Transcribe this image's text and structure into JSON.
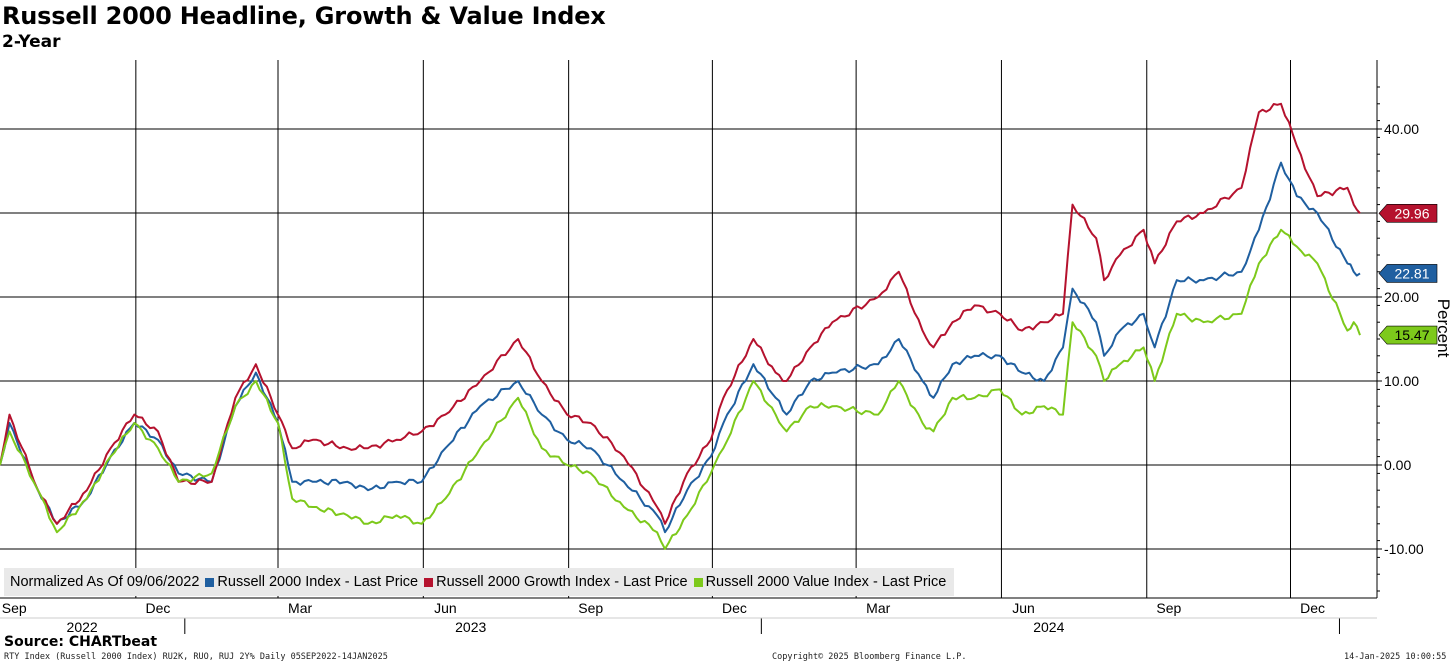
{
  "title": "Russell 2000 Headline, Growth & Value Index",
  "subtitle": "2-Year",
  "source": "Source: CHARTbeat",
  "footer": {
    "left": "RTY Index (Russell 2000 Index) RU2K, RUO, RUJ 2Y%  Daily 05SEP2022-14JAN2025",
    "center": "Copyright© 2025 Bloomberg Finance L.P.",
    "right": "14-Jan-2025 10:00:55"
  },
  "legend": {
    "note": "Normalized As Of 09/06/2022",
    "items": [
      {
        "label": "Russell 2000 Index - Last Price",
        "color": "#1f5fa0"
      },
      {
        "label": "Russell 2000 Growth Index - Last Price",
        "color": "#b5122e"
      },
      {
        "label": "Russell 2000 Value Index - Last Price",
        "color": "#7dc91b"
      }
    ]
  },
  "colors": {
    "headline": "#1f5fa0",
    "growth": "#b5122e",
    "value": "#7dc91b",
    "grid": "#000000"
  },
  "chart_data": {
    "type": "line",
    "ylabel": "Percent",
    "ylim": [
      -15,
      45
    ],
    "y_ticks": [
      "-10.00",
      "0.00",
      "10.00",
      "20.00",
      "40.00"
    ],
    "x_month_labels": [
      "Sep",
      "Dec",
      "Mar",
      "Jun",
      "Sep",
      "Dec",
      "Mar",
      "Jun",
      "Sep",
      "Dec"
    ],
    "x_year_labels": [
      "2022",
      "2023",
      "2024"
    ],
    "x_range": [
      "2022-09-06",
      "2025-01-14"
    ],
    "grid": true,
    "legend_position": "bottom-left",
    "last_values": [
      {
        "series": "Russell 2000 Growth Index - Last Price",
        "value": "29.96"
      },
      {
        "series": "Russell 2000 Index - Last Price",
        "value": "22.81"
      },
      {
        "series": "Russell 2000 Value Index - Last Price",
        "value": "15.47"
      }
    ],
    "series": [
      {
        "name": "Russell 2000 Index - Last Price",
        "color": "#1f5fa0",
        "x": [
          "2022-09-06",
          "2022-09-12",
          "2022-09-30",
          "2022-10-12",
          "2022-10-31",
          "2022-11-15",
          "2022-11-30",
          "2022-12-15",
          "2022-12-28",
          "2023-01-18",
          "2023-02-02",
          "2023-02-15",
          "2023-03-01",
          "2023-03-10",
          "2023-03-23",
          "2023-04-14",
          "2023-04-27",
          "2023-05-15",
          "2023-05-31",
          "2023-06-15",
          "2023-07-07",
          "2023-07-31",
          "2023-08-15",
          "2023-08-31",
          "2023-09-15",
          "2023-10-06",
          "2023-10-27",
          "2023-11-01",
          "2023-11-15",
          "2023-11-30",
          "2023-12-08",
          "2023-12-27",
          "2024-01-10",
          "2024-01-17",
          "2024-02-01",
          "2024-02-15",
          "2024-03-15",
          "2024-03-28",
          "2024-04-12",
          "2024-04-19",
          "2024-05-01",
          "2024-05-15",
          "2024-05-31",
          "2024-06-14",
          "2024-06-28",
          "2024-07-10",
          "2024-07-16",
          "2024-07-31",
          "2024-08-05",
          "2024-08-15",
          "2024-08-30",
          "2024-09-06",
          "2024-09-20",
          "2024-10-07",
          "2024-10-31",
          "2024-11-11",
          "2024-11-25",
          "2024-12-05",
          "2024-12-18",
          "2025-01-06",
          "2025-01-10",
          "2025-01-14"
        ],
        "values": [
          0,
          5,
          -3,
          -7,
          -4,
          1,
          5,
          3,
          -1,
          -2,
          7,
          11,
          5,
          -2,
          -2,
          -2,
          -3,
          -2,
          -2,
          2,
          7,
          10,
          6,
          3,
          2,
          -2,
          -6,
          -8,
          -3,
          1,
          5,
          12,
          8,
          6,
          10,
          11,
          12,
          15,
          10,
          8,
          12,
          13,
          13,
          11,
          10,
          14,
          21,
          17,
          13,
          16,
          18,
          14,
          22,
          22,
          23,
          28,
          36,
          32,
          30,
          24,
          23,
          22.81
        ]
      },
      {
        "name": "Russell 2000 Growth Index - Last Price",
        "color": "#b5122e",
        "x": [
          "2022-09-06",
          "2022-09-12",
          "2022-09-30",
          "2022-10-12",
          "2022-10-31",
          "2022-11-15",
          "2022-11-30",
          "2022-12-15",
          "2022-12-28",
          "2023-01-18",
          "2023-02-02",
          "2023-02-15",
          "2023-03-01",
          "2023-03-10",
          "2023-03-23",
          "2023-04-14",
          "2023-04-27",
          "2023-05-15",
          "2023-05-31",
          "2023-06-15",
          "2023-07-07",
          "2023-07-31",
          "2023-08-15",
          "2023-08-31",
          "2023-09-15",
          "2023-10-06",
          "2023-10-27",
          "2023-11-01",
          "2023-11-15",
          "2023-11-30",
          "2023-12-08",
          "2023-12-27",
          "2024-01-10",
          "2024-01-17",
          "2024-02-01",
          "2024-02-15",
          "2024-03-15",
          "2024-03-28",
          "2024-04-12",
          "2024-04-19",
          "2024-05-01",
          "2024-05-15",
          "2024-05-31",
          "2024-06-14",
          "2024-06-28",
          "2024-07-10",
          "2024-07-16",
          "2024-07-31",
          "2024-08-05",
          "2024-08-15",
          "2024-08-30",
          "2024-09-06",
          "2024-09-20",
          "2024-10-07",
          "2024-10-31",
          "2024-11-11",
          "2024-11-25",
          "2024-12-05",
          "2024-12-18",
          "2025-01-06",
          "2025-01-10",
          "2025-01-14"
        ],
        "values": [
          0,
          6,
          -3,
          -7,
          -3,
          2,
          6,
          4,
          -2,
          -2,
          8,
          12,
          6,
          2,
          3,
          2,
          2,
          3,
          4,
          6,
          10,
          15,
          10,
          6,
          5,
          1,
          -5,
          -7,
          -1,
          3,
          8,
          15,
          11,
          10,
          14,
          17,
          20,
          23,
          16,
          14,
          17,
          19,
          18,
          16,
          17,
          18,
          31,
          27,
          22,
          25,
          28,
          24,
          29,
          30,
          33,
          42,
          43,
          38,
          32,
          33,
          31,
          29.96
        ]
      },
      {
        "name": "Russell 2000 Value Index - Last Price",
        "color": "#7dc91b",
        "x": [
          "2022-09-06",
          "2022-09-12",
          "2022-09-30",
          "2022-10-12",
          "2022-10-31",
          "2022-11-15",
          "2022-11-30",
          "2022-12-15",
          "2022-12-28",
          "2023-01-18",
          "2023-02-02",
          "2023-02-15",
          "2023-03-01",
          "2023-03-10",
          "2023-03-23",
          "2023-04-14",
          "2023-04-27",
          "2023-05-15",
          "2023-05-31",
          "2023-06-15",
          "2023-07-07",
          "2023-07-31",
          "2023-08-15",
          "2023-08-31",
          "2023-09-15",
          "2023-10-06",
          "2023-10-27",
          "2023-11-01",
          "2023-11-15",
          "2023-11-30",
          "2023-12-08",
          "2023-12-27",
          "2024-01-10",
          "2024-01-17",
          "2024-02-01",
          "2024-02-15",
          "2024-03-15",
          "2024-03-28",
          "2024-04-12",
          "2024-04-19",
          "2024-05-01",
          "2024-05-15",
          "2024-05-31",
          "2024-06-14",
          "2024-06-28",
          "2024-07-10",
          "2024-07-16",
          "2024-07-31",
          "2024-08-05",
          "2024-08-15",
          "2024-08-30",
          "2024-09-06",
          "2024-09-20",
          "2024-10-07",
          "2024-10-31",
          "2024-11-11",
          "2024-11-25",
          "2024-12-05",
          "2024-12-18",
          "2025-01-06",
          "2025-01-10",
          "2025-01-14"
        ],
        "values": [
          0,
          4,
          -3,
          -8,
          -4,
          1,
          5,
          2,
          -2,
          -1,
          7,
          10,
          5,
          -4,
          -5,
          -6,
          -7,
          -6,
          -7,
          -4,
          2,
          8,
          2,
          0,
          -1,
          -5,
          -8,
          -10,
          -6,
          -1,
          2,
          10,
          6,
          4,
          7,
          7,
          6,
          10,
          5,
          4,
          8,
          8,
          9,
          6,
          7,
          6,
          17,
          13,
          10,
          12,
          14,
          10,
          18,
          17,
          18,
          24,
          28,
          26,
          24,
          16,
          17,
          15.47
        ]
      }
    ]
  }
}
